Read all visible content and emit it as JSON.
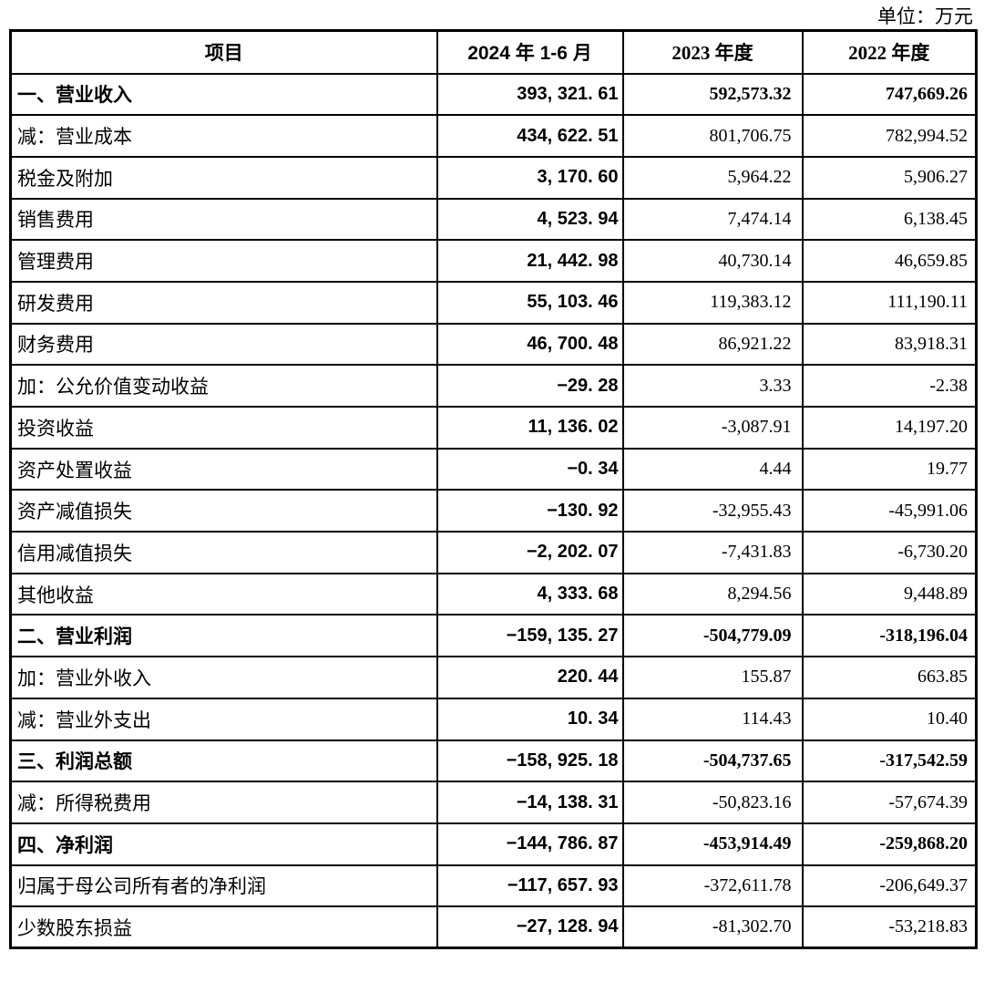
{
  "unit_label": "单位：万元",
  "table": {
    "columns": [
      "项目",
      "2024 年 1-6 月",
      "2023 年度",
      "2022 年度"
    ],
    "rows": [
      {
        "label": "一、营业收入",
        "v2024": "393, 321. 61",
        "v2023": "592,573.32",
        "v2022": "747,669.26",
        "section": true
      },
      {
        "label": "减：营业成本",
        "v2024": "434, 622. 51",
        "v2023": "801,706.75",
        "v2022": "782,994.52",
        "section": false
      },
      {
        "label": "税金及附加",
        "v2024": "3, 170. 60",
        "v2023": "5,964.22",
        "v2022": "5,906.27",
        "section": false
      },
      {
        "label": "销售费用",
        "v2024": "4, 523. 94",
        "v2023": "7,474.14",
        "v2022": "6,138.45",
        "section": false
      },
      {
        "label": "管理费用",
        "v2024": "21, 442. 98",
        "v2023": "40,730.14",
        "v2022": "46,659.85",
        "section": false
      },
      {
        "label": "研发费用",
        "v2024": "55, 103. 46",
        "v2023": "119,383.12",
        "v2022": "111,190.11",
        "section": false
      },
      {
        "label": "财务费用",
        "v2024": "46, 700. 48",
        "v2023": "86,921.22",
        "v2022": "83,918.31",
        "section": false
      },
      {
        "label": "加：公允价值变动收益",
        "v2024": "−29. 28",
        "v2023": "3.33",
        "v2022": "-2.38",
        "section": false
      },
      {
        "label": "投资收益",
        "v2024": "11, 136. 02",
        "v2023": "-3,087.91",
        "v2022": "14,197.20",
        "section": false
      },
      {
        "label": "资产处置收益",
        "v2024": "−0. 34",
        "v2023": "4.44",
        "v2022": "19.77",
        "section": false
      },
      {
        "label": "资产减值损失",
        "v2024": "−130. 92",
        "v2023": "-32,955.43",
        "v2022": "-45,991.06",
        "section": false
      },
      {
        "label": "信用减值损失",
        "v2024": "−2, 202. 07",
        "v2023": "-7,431.83",
        "v2022": "-6,730.20",
        "section": false
      },
      {
        "label": "其他收益",
        "v2024": "4, 333. 68",
        "v2023": "8,294.56",
        "v2022": "9,448.89",
        "section": false
      },
      {
        "label": "二、营业利润",
        "v2024": "−159, 135. 27",
        "v2023": "-504,779.09",
        "v2022": "-318,196.04",
        "section": true
      },
      {
        "label": "加：营业外收入",
        "v2024": "220. 44",
        "v2023": "155.87",
        "v2022": "663.85",
        "section": false
      },
      {
        "label": "减：营业外支出",
        "v2024": "10. 34",
        "v2023": "114.43",
        "v2022": "10.40",
        "section": false
      },
      {
        "label": "三、利润总额",
        "v2024": "−158, 925. 18",
        "v2023": "-504,737.65",
        "v2022": "-317,542.59",
        "section": true
      },
      {
        "label": "减：所得税费用",
        "v2024": "−14, 138. 31",
        "v2023": "-50,823.16",
        "v2022": "-57,674.39",
        "section": false
      },
      {
        "label": "四、净利润",
        "v2024": "−144, 786. 87",
        "v2023": "-453,914.49",
        "v2022": "-259,868.20",
        "section": true
      },
      {
        "label": "归属于母公司所有者的净利润",
        "v2024": "−117, 657. 93",
        "v2023": "-372,611.78",
        "v2022": "-206,649.37",
        "section": false
      },
      {
        "label": "少数股东损益",
        "v2024": "−27, 128. 94",
        "v2023": "-81,302.70",
        "v2022": "-53,218.83",
        "section": false
      }
    ]
  }
}
